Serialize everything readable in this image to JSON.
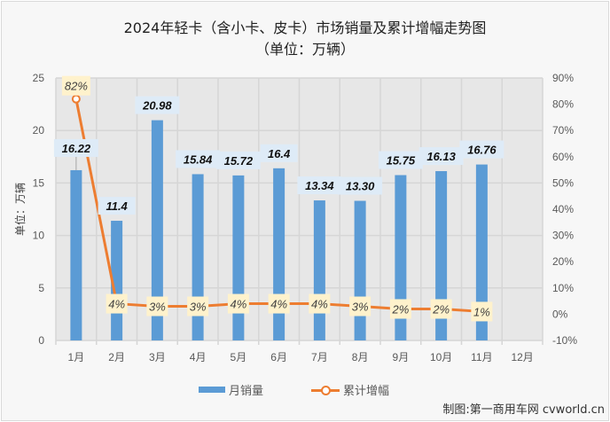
{
  "title": "2024年轻卡（含小卡、皮卡）市场销量及累计增幅走势图",
  "subtitle": "（单位：万辆）",
  "credit": "制图:第一商用车网 cvworld.cn",
  "legend": {
    "bar_label": "月销量",
    "line_label": "累计增幅"
  },
  "colors": {
    "bar": "#5b9bd5",
    "line": "#ed7d31",
    "plot_bg": "#e7e7e7",
    "grid": "#d6d6d6",
    "bar_label_bg": "#deebf7",
    "pct_label_bg": "#fff2cc",
    "frame_bg": "#f7f7f7"
  },
  "chart_data": {
    "type": "bar+line",
    "title": "2024年轻卡（含小卡、皮卡）市场销量及累计增幅走势图（单位：万辆）",
    "categories": [
      "1月",
      "2月",
      "3月",
      "4月",
      "5月",
      "6月",
      "7月",
      "8月",
      "9月",
      "10月",
      "11月",
      "12月"
    ],
    "series": [
      {
        "name": "月销量",
        "type": "bar",
        "axis": "left",
        "values": [
          16.22,
          11.4,
          20.98,
          15.84,
          15.72,
          16.4,
          13.34,
          13.3,
          15.75,
          16.13,
          16.76,
          null
        ],
        "labels": [
          "16.22",
          "11.4",
          "20.98",
          "15.84",
          "15.72",
          "16.4",
          "13.34",
          "13.30",
          "15.75",
          "16.13",
          "16.76",
          ""
        ]
      },
      {
        "name": "累计增幅",
        "type": "line",
        "axis": "right",
        "values": [
          82,
          4,
          3,
          3,
          4,
          4,
          4,
          3,
          2,
          2,
          1,
          null
        ],
        "labels": [
          "82%",
          "4%",
          "3%",
          "3%",
          "4%",
          "4%",
          "4%",
          "3%",
          "2%",
          "2%",
          "1%",
          ""
        ]
      }
    ],
    "xlabel": "",
    "ylabel": "单位：万辆",
    "ylim": [
      0,
      25
    ],
    "yticks": [
      0,
      5,
      10,
      15,
      20,
      25
    ],
    "y2lim": [
      -10,
      90
    ],
    "y2ticks": [
      "-10%",
      "0%",
      "10%",
      "20%",
      "30%",
      "40%",
      "50%",
      "60%",
      "70%",
      "80%",
      "90%"
    ],
    "grid": true,
    "legend_position": "bottom"
  }
}
